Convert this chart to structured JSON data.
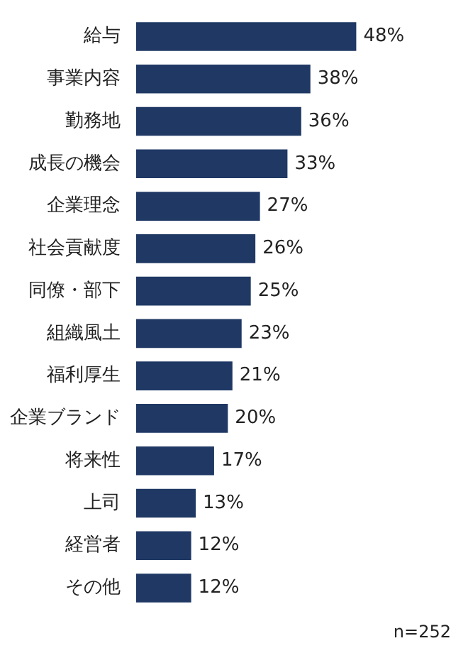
{
  "chart_data": {
    "type": "bar",
    "orientation": "horizontal",
    "categories": [
      "給与",
      "事業内容",
      "勤務地",
      "成長の機会",
      "企業理念",
      "社会貢献度",
      "同僚・部下",
      "組織風土",
      "福利厚生",
      "企業ブランド",
      "将来性",
      "上司",
      "経営者",
      "その他"
    ],
    "values": [
      48,
      38,
      36,
      33,
      27,
      26,
      25,
      23,
      21,
      20,
      17,
      13,
      12,
      12
    ],
    "value_labels": [
      "48%",
      "38%",
      "36%",
      "33%",
      "27%",
      "26%",
      "25%",
      "23%",
      "21%",
      "20%",
      "17%",
      "13%",
      "12%",
      "12%"
    ],
    "color": "#1f3864",
    "annotations": [
      "n=252"
    ]
  }
}
